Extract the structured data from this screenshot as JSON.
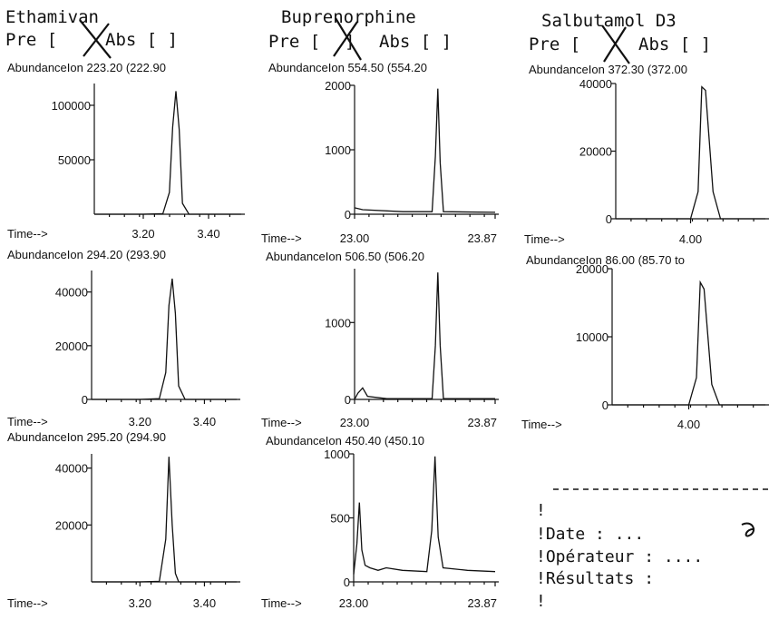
{
  "compounds": [
    {
      "name": "Ethamivan",
      "pre_label": "Pre [",
      "pre_close": "]",
      "abs_label": "Abs [ ]"
    },
    {
      "name": "Buprenorphine",
      "pre_label": "Pre [",
      "pre_close": "]",
      "abs_label": "Abs [ ]"
    },
    {
      "name": "Salbutamol D3",
      "pre_label": "Pre [",
      "pre_close": "]",
      "abs_label": "Abs [ ]"
    }
  ],
  "chart_data": [
    {
      "type": "line",
      "title": "AbundanceIon 223.20 (222.90",
      "xlabel": "Time-->",
      "yticks": [
        50000,
        100000
      ],
      "ylim": [
        0,
        120000
      ],
      "xlim": [
        3.05,
        3.5
      ],
      "xticks": [
        "3.20",
        "3.40"
      ],
      "series": [
        {
          "x": [
            3.05,
            3.2,
            3.26,
            3.28,
            3.29,
            3.3,
            3.31,
            3.32,
            3.34,
            3.5
          ],
          "y": [
            0,
            0,
            500,
            20000,
            80000,
            113000,
            78000,
            10000,
            0,
            0
          ]
        }
      ]
    },
    {
      "type": "line",
      "title": "AbundanceIon 554.50 (554.20",
      "xlabel": "Time-->",
      "yticks": [
        0,
        1000,
        2000
      ],
      "ylim": [
        0,
        2000
      ],
      "xlim": [
        23.0,
        23.87
      ],
      "xticks": [
        "23.00",
        "23.87"
      ],
      "series": [
        {
          "x": [
            23.0,
            23.05,
            23.3,
            23.48,
            23.5,
            23.515,
            23.53,
            23.55,
            23.87
          ],
          "y": [
            100,
            70,
            40,
            40,
            900,
            1950,
            800,
            40,
            30
          ]
        }
      ]
    },
    {
      "type": "line",
      "title": "AbundanceIon 372.30 (372.00",
      "xlabel": "Time-->",
      "yticks": [
        0,
        20000,
        40000
      ],
      "ylim": [
        0,
        40000
      ],
      "xlim": [
        3.9,
        4.1
      ],
      "xticks": [
        "4.00"
      ],
      "series": [
        {
          "x": [
            3.9,
            4.0,
            4.01,
            4.015,
            4.02,
            4.03,
            4.04,
            4.1
          ],
          "y": [
            0,
            0,
            8000,
            39000,
            38000,
            8000,
            0,
            0
          ]
        }
      ]
    },
    {
      "type": "line",
      "title": "AbundanceIon 294.20 (293.90",
      "xlabel": "Time-->",
      "yticks": [
        0,
        20000,
        40000
      ],
      "ylim": [
        0,
        48000
      ],
      "xlim": [
        3.05,
        3.5
      ],
      "xticks": [
        "3.20",
        "3.40"
      ],
      "series": [
        {
          "x": [
            3.05,
            3.2,
            3.26,
            3.28,
            3.29,
            3.3,
            3.31,
            3.32,
            3.34,
            3.5
          ],
          "y": [
            0,
            0,
            300,
            10000,
            35000,
            45000,
            32000,
            5000,
            0,
            0
          ]
        }
      ]
    },
    {
      "type": "line",
      "title": "AbundanceIon 506.50 (506.20",
      "xlabel": "Time-->",
      "yticks": [
        0,
        1000
      ],
      "ylim": [
        0,
        1700
      ],
      "xlim": [
        23.0,
        23.87
      ],
      "xticks": [
        "23.00",
        "23.87"
      ],
      "series": [
        {
          "x": [
            23.0,
            23.02,
            23.05,
            23.08,
            23.2,
            23.48,
            23.5,
            23.515,
            23.53,
            23.55,
            23.87
          ],
          "y": [
            0,
            80,
            150,
            40,
            10,
            10,
            700,
            1650,
            700,
            10,
            10
          ]
        }
      ]
    },
    {
      "type": "line",
      "title": "AbundanceIon  86.00 (85.70 to",
      "xlabel": "Time-->",
      "yticks": [
        0,
        10000,
        20000
      ],
      "ylim": [
        0,
        20000
      ],
      "xlim": [
        3.9,
        4.1
      ],
      "xticks": [
        "4.00"
      ],
      "series": [
        {
          "x": [
            3.9,
            4.0,
            4.01,
            4.015,
            4.02,
            4.03,
            4.04,
            4.1
          ],
          "y": [
            0,
            0,
            4000,
            18000,
            17000,
            3000,
            0,
            0
          ]
        }
      ]
    },
    {
      "type": "line",
      "title": "AbundanceIon 295.20 (294.90",
      "xlabel": "Time-->",
      "yticks": [
        20000,
        40000
      ],
      "ylim": [
        0,
        45000
      ],
      "xlim": [
        3.05,
        3.5
      ],
      "xticks": [
        "3.20",
        "3.40"
      ],
      "series": [
        {
          "x": [
            3.05,
            3.2,
            3.26,
            3.28,
            3.29,
            3.3,
            3.31,
            3.32,
            3.5
          ],
          "y": [
            0,
            0,
            200,
            15000,
            44000,
            20000,
            3000,
            0,
            0
          ]
        }
      ]
    },
    {
      "type": "line",
      "title": "AbundanceIon 450.40 (450.10",
      "xlabel": "Time-->",
      "yticks": [
        0,
        500,
        1000
      ],
      "ylim": [
        0,
        1000
      ],
      "xlim": [
        23.0,
        23.87
      ],
      "xticks": [
        "23.00",
        "23.87"
      ],
      "series": [
        {
          "x": [
            23.0,
            23.02,
            23.035,
            23.05,
            23.07,
            23.1,
            23.15,
            23.2,
            23.3,
            23.45,
            23.48,
            23.5,
            23.52,
            23.55,
            23.7,
            23.87
          ],
          "y": [
            60,
            300,
            620,
            250,
            130,
            110,
            90,
            110,
            90,
            80,
            400,
            980,
            350,
            110,
            90,
            80
          ]
        }
      ]
    }
  ],
  "form": {
    "date_label": "!Date       : ...",
    "operator_label": "!Opérateur  : ....",
    "results_label": "!Résultats  :",
    "bang_1": "!",
    "bang_2": "!"
  }
}
